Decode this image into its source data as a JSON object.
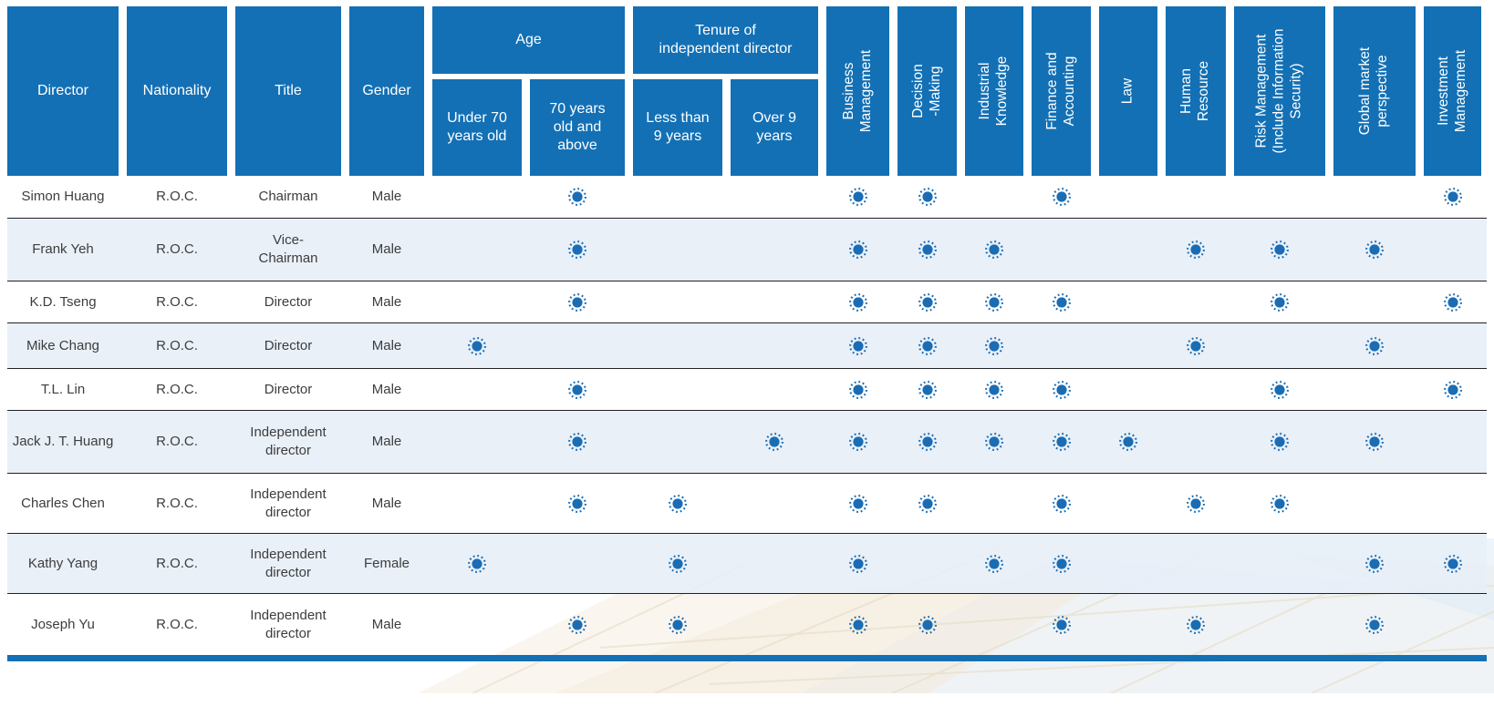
{
  "colors": {
    "header_blue": "#1370b5",
    "dot_blue": "#1a6db4",
    "row_alt": "#e7eff7",
    "separator": "#222222",
    "bottom_bar": "#1370b5",
    "text": "#3d3d3d",
    "header_text": "#ffffff"
  },
  "icons": {
    "mark": "sun-dot-icon"
  },
  "table": {
    "columns": {
      "director": "Director",
      "nationality": "Nationality",
      "title": "Title",
      "gender": "Gender",
      "age_group": "Age",
      "age_under70": "Under 70\nyears old",
      "age_70above": "70 years\nold and\nabove",
      "tenure_group": "Tenure of\nindependent director",
      "tenure_less9": "Less than\n9 years",
      "tenure_over9": "Over 9\nyears",
      "skills": [
        "Business\nManagement",
        "Decision\n-Making",
        "Industrial\nKnowledge",
        "Finance and\nAccounting",
        "Law",
        "Human\nResource",
        "Risk Management\n(Include Information\nSecurity)",
        "Global market\nperspective",
        "Investment\nManagement"
      ]
    },
    "rows": [
      {
        "name": "Simon Huang",
        "nationality": "R.O.C.",
        "title": "Chairman",
        "gender": "Male",
        "marks": {
          "under70": false,
          "above70": true,
          "less9": false,
          "over9": false,
          "skills": [
            true,
            true,
            false,
            true,
            false,
            false,
            false,
            false,
            true
          ]
        }
      },
      {
        "name": "Frank Yeh",
        "nationality": "R.O.C.",
        "title": "Vice-\nChairman",
        "gender": "Male",
        "marks": {
          "under70": false,
          "above70": true,
          "less9": false,
          "over9": false,
          "skills": [
            true,
            true,
            true,
            false,
            false,
            true,
            true,
            true,
            false
          ]
        }
      },
      {
        "name": "K.D. Tseng",
        "nationality": "R.O.C.",
        "title": "Director",
        "gender": "Male",
        "marks": {
          "under70": false,
          "above70": true,
          "less9": false,
          "over9": false,
          "skills": [
            true,
            true,
            true,
            true,
            false,
            false,
            true,
            false,
            true
          ]
        }
      },
      {
        "name": "Mike Chang",
        "nationality": "R.O.C.",
        "title": "Director",
        "gender": "Male",
        "marks": {
          "under70": true,
          "above70": false,
          "less9": false,
          "over9": false,
          "skills": [
            true,
            true,
            true,
            false,
            false,
            true,
            false,
            true,
            false
          ]
        }
      },
      {
        "name": "T.L. Lin",
        "nationality": "R.O.C.",
        "title": "Director",
        "gender": "Male",
        "marks": {
          "under70": false,
          "above70": true,
          "less9": false,
          "over9": false,
          "skills": [
            true,
            true,
            true,
            true,
            false,
            false,
            true,
            false,
            true
          ]
        }
      },
      {
        "name": "Jack J. T. Huang",
        "nationality": "R.O.C.",
        "title": "Independent\ndirector",
        "gender": "Male",
        "marks": {
          "under70": false,
          "above70": true,
          "less9": false,
          "over9": true,
          "skills": [
            true,
            true,
            true,
            true,
            true,
            false,
            true,
            true,
            false
          ]
        }
      },
      {
        "name": "Charles Chen",
        "nationality": "R.O.C.",
        "title": "Independent\ndirector",
        "gender": "Male",
        "marks": {
          "under70": false,
          "above70": true,
          "less9": true,
          "over9": false,
          "skills": [
            true,
            true,
            false,
            true,
            false,
            true,
            true,
            false,
            false
          ]
        }
      },
      {
        "name": "Kathy Yang",
        "nationality": "R.O.C.",
        "title": "Independent\ndirector",
        "gender": "Female",
        "marks": {
          "under70": true,
          "above70": false,
          "less9": true,
          "over9": false,
          "skills": [
            true,
            false,
            true,
            true,
            false,
            false,
            false,
            true,
            true
          ]
        }
      },
      {
        "name": "Joseph Yu",
        "nationality": "R.O.C.",
        "title": "Independent\ndirector",
        "gender": "Male",
        "marks": {
          "under70": false,
          "above70": true,
          "less9": true,
          "over9": false,
          "skills": [
            true,
            true,
            false,
            true,
            false,
            true,
            false,
            true,
            false
          ]
        }
      }
    ]
  }
}
